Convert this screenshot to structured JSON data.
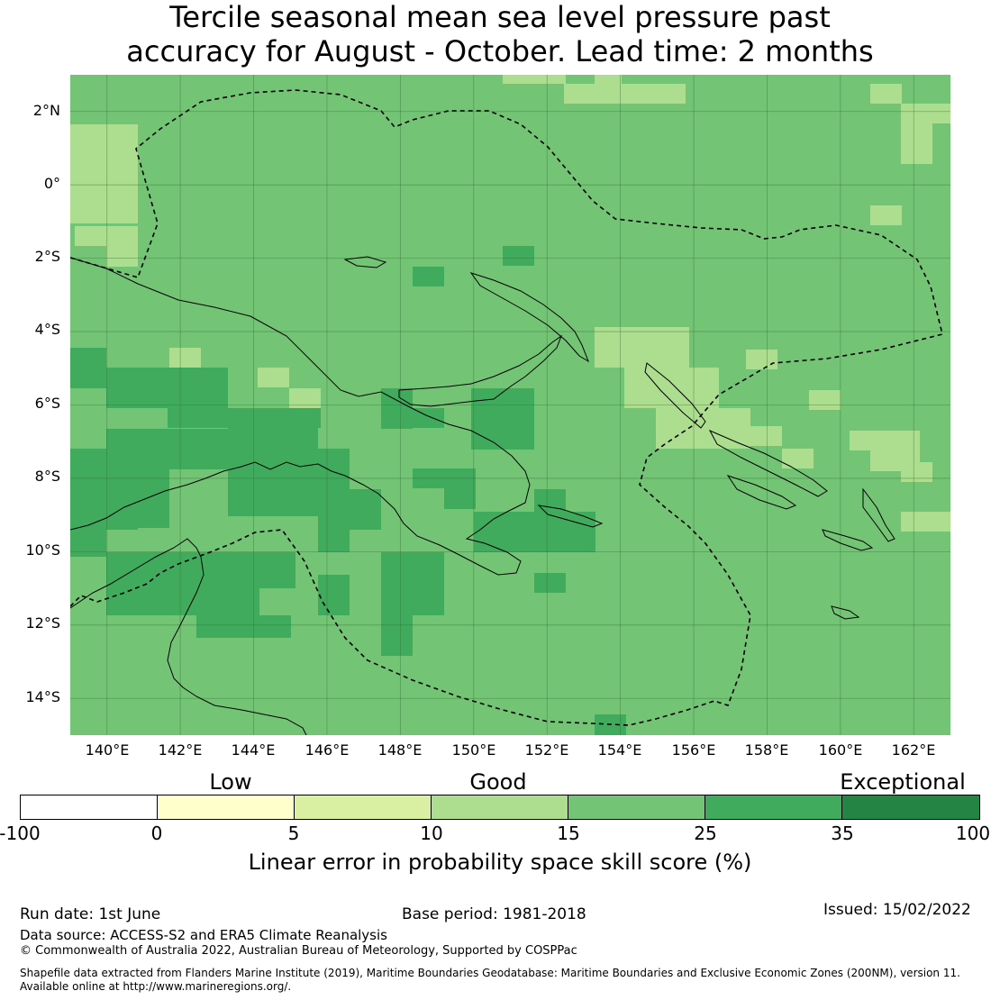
{
  "title": {
    "line1": "Tercile seasonal mean sea level pressure past",
    "line2": "accuracy for August - October. Lead time: 2 months"
  },
  "map": {
    "lon_labels": [
      "140°E",
      "142°E",
      "144°E",
      "146°E",
      "148°E",
      "150°E",
      "152°E",
      "154°E",
      "156°E",
      "158°E",
      "160°E",
      "162°E"
    ],
    "lat_labels": [
      "2°N",
      "0°",
      "2°S",
      "4°S",
      "6°S",
      "8°S",
      "10°S",
      "12°S",
      "14°S"
    ],
    "extent": {
      "lon_min": 139.0,
      "lon_max": 163.0,
      "lat_min": -15.0,
      "lat_max": 3.0
    },
    "base_color": "#74c476",
    "eez_boundary": "dashed",
    "grid": true
  },
  "legend": {
    "category_labels": [
      "Low",
      "Good",
      "Exceptional"
    ],
    "tick_labels": [
      "-100",
      "0",
      "5",
      "10",
      "15",
      "25",
      "35",
      "100"
    ],
    "colors": [
      "#ffffff",
      "#ffffcc",
      "#d9f0a3",
      "#addd8e",
      "#74c476",
      "#41ab5d",
      "#238443"
    ],
    "title": "Linear error in probability space skill score (%)"
  },
  "footer": {
    "run_date": "Run date: 1st June",
    "base_period": "Base period: 1981-2018",
    "issued": "Issued: 15/02/2022",
    "data_source": "Data source: ACCESS-S2 and ERA5 Climate Reanalysis",
    "copyright": "© Commonwealth of Australia 2022, Australian Bureau of Meteorology, Supported by COSPPac",
    "shapefile_line1": "Shapefile data extracted from Flanders Marine Institute (2019), Maritime Boundaries Geodatabase: Maritime Boundaries and Exclusive Economic Zones (200NM), version 11.",
    "shapefile_line2": "Available online at http://www.marineregions.org/."
  }
}
